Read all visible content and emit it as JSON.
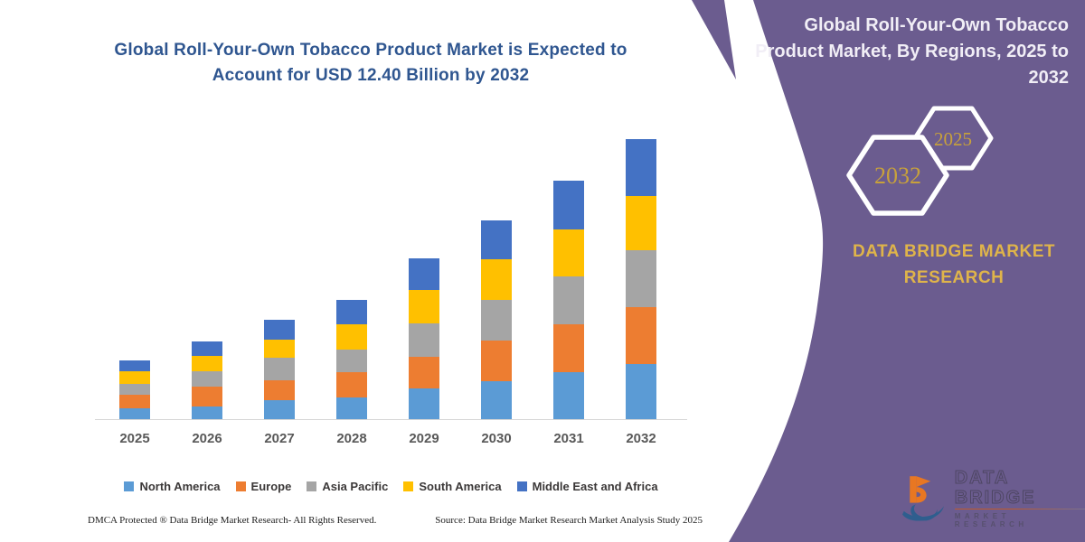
{
  "chart": {
    "title_line1": "Global Roll-Your-Own Tobacco Product Market is Expected to",
    "title_line2": "Account for USD 12.40 Billion by 2032",
    "title_color": "#2f5690",
    "footer_left": "DMCA Protected ® Data Bridge Market Research-  All Rights Reserved.",
    "footer_source": "Source: Data Bridge Market Research  Market Analysis Study 2025"
  },
  "chart_data": {
    "type": "bar",
    "stacked": true,
    "title": "Global Roll-Your-Own Tobacco Product Market is Expected to Account for USD 12.40 Billion by 2032",
    "value_unit": "USD Billion",
    "xlabel": "",
    "ylabel": "",
    "ylim": [
      0,
      13
    ],
    "grid": false,
    "legend_position": "bottom",
    "categories": [
      "2025",
      "2026",
      "2027",
      "2028",
      "2029",
      "2030",
      "2031",
      "2032"
    ],
    "series": [
      {
        "name": "North America",
        "color": "#5b9bd5",
        "values": [
          0.52,
          0.6,
          0.88,
          1.0,
          1.4,
          1.72,
          2.11,
          2.47
        ]
      },
      {
        "name": "Europe",
        "color": "#ed7d31",
        "values": [
          0.6,
          0.88,
          0.88,
          1.12,
          1.4,
          1.8,
          2.11,
          2.51
        ]
      },
      {
        "name": "Asia Pacific",
        "color": "#a5a5a5",
        "values": [
          0.5,
          0.68,
          1.0,
          1.0,
          1.48,
          1.8,
          2.11,
          2.51
        ]
      },
      {
        "name": "South America",
        "color": "#ffc000",
        "values": [
          0.53,
          0.68,
          0.8,
          1.12,
          1.48,
          1.8,
          2.07,
          2.4
        ]
      },
      {
        "name": "Middle East and Africa",
        "color": "#4472c4",
        "values": [
          0.5,
          0.64,
          0.88,
          1.08,
          1.4,
          1.72,
          2.19,
          2.51
        ]
      }
    ],
    "estimated_totals": [
      2.65,
      3.48,
      4.44,
      5.32,
      7.16,
      8.84,
      10.59,
      12.4
    ]
  },
  "panel": {
    "bg_color": "#6b5c8f",
    "heading_line1": "Global Roll-Your-Own Tobacco",
    "heading_line2": "Product Market, By Regions, 2025 to",
    "heading_line3": "2032",
    "hexagon_back_label": "2025",
    "hexagon_front_label": "2032",
    "hex_label_color": "#c8a13b",
    "brand_line1": "DATA BRIDGE MARKET",
    "brand_line2": "RESEARCH",
    "brand_color": "#dfb44a",
    "logo_primary": "DATA BRIDGE",
    "logo_secondary": "MARKET RESEARCH"
  }
}
